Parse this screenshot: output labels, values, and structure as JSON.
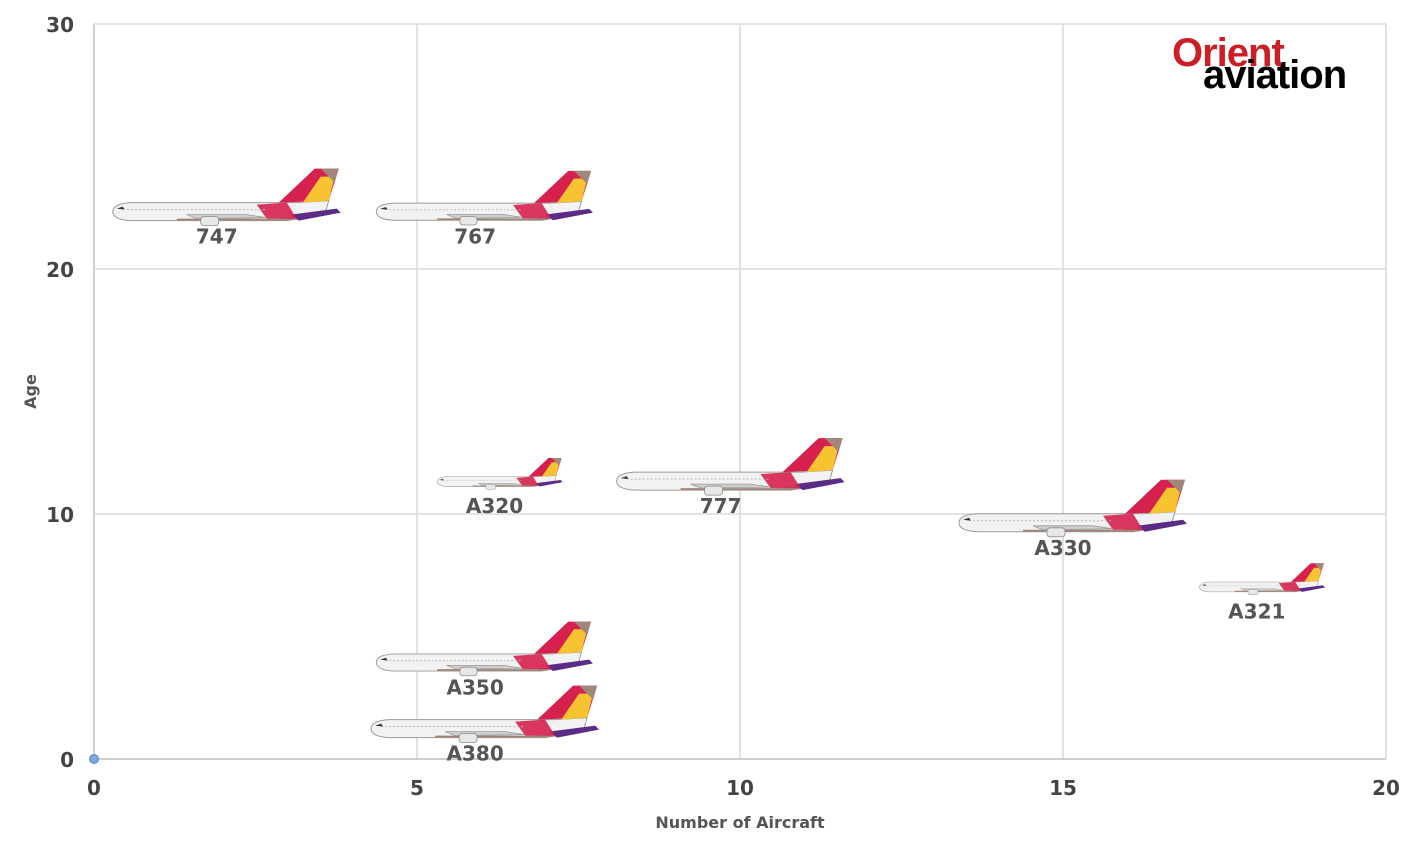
{
  "chart_data": {
    "type": "scatter",
    "title": "",
    "xlabel": "Number of Aircraft",
    "ylabel": "Age",
    "xlim": [
      0,
      20
    ],
    "ylim": [
      0,
      30
    ],
    "xticks": [
      0,
      5,
      10,
      15,
      20
    ],
    "yticks": [
      0,
      10,
      20,
      30
    ],
    "grid": true,
    "points": [
      {
        "label": "747",
        "x": 1.9,
        "y": 22.3,
        "size": "large"
      },
      {
        "label": "767",
        "x": 5.9,
        "y": 22.3,
        "size": "medium"
      },
      {
        "label": "A320",
        "x": 6.2,
        "y": 11.3,
        "size": "small"
      },
      {
        "label": "777",
        "x": 9.7,
        "y": 11.3,
        "size": "large"
      },
      {
        "label": "A330",
        "x": 15.0,
        "y": 9.6,
        "size": "large"
      },
      {
        "label": "A321",
        "x": 18.0,
        "y": 7.0,
        "size": "small"
      },
      {
        "label": "A350",
        "x": 5.9,
        "y": 3.9,
        "size": "medium"
      },
      {
        "label": "A380",
        "x": 5.9,
        "y": 1.2,
        "size": "large"
      }
    ],
    "origin_marker": {
      "x": 0,
      "y": 0
    }
  },
  "logo": {
    "line1": "Orient",
    "line2": "aviation"
  },
  "colors": {
    "grid": "#d9d9d9",
    "axis": "#bfbfbf",
    "fuselage": "#f2f2f2",
    "tail_purple": "#5b2c86",
    "tail_red": "#d6204e",
    "tail_yellow": "#f7c331",
    "tail_brown": "#a0877a",
    "marker": "#7fa7d8"
  },
  "icons": {
    "plane": "asiana-aircraft-icon"
  }
}
